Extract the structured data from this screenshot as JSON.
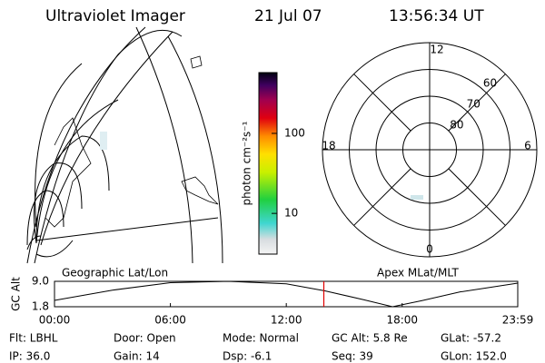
{
  "header": {
    "instrument": "Ultraviolet Imager",
    "date": "21 Jul 07",
    "time": "13:56:34 UT"
  },
  "colorbar": {
    "label": "photon cm⁻²s⁻¹",
    "scale": "log",
    "lim": [
      3.1,
      575
    ],
    "ticks": [
      10,
      100
    ]
  },
  "polar": {
    "outer_lat": 50,
    "rings": [
      60,
      70,
      80
    ],
    "mlt_labels": [
      "12",
      "18",
      "6",
      "0"
    ]
  },
  "panels": {
    "left": "Geographic Lat/Lon",
    "right": "Apex MLat/MLT"
  },
  "altitude": {
    "ylabel": "GC Alt",
    "ylim": [
      1.8,
      9.0
    ],
    "yticks": [
      {
        "value": 9.0,
        "label": "9.0"
      },
      {
        "value": 1.8,
        "label": "1.8"
      }
    ],
    "xlim": [
      0,
      23.983
    ],
    "xticks": [
      {
        "value": 0,
        "label": "00:00"
      },
      {
        "value": 6,
        "label": "06:00"
      },
      {
        "value": 12,
        "label": "12:00"
      },
      {
        "value": 18,
        "label": "18:00"
      },
      {
        "value": 23.983,
        "label": "23:59"
      }
    ],
    "x": [
      0,
      3,
      6,
      9,
      12,
      14,
      16,
      17.5,
      19,
      21,
      23.983
    ],
    "values": [
      3.6,
      6.5,
      8.6,
      9.0,
      8.3,
      6.3,
      3.8,
      1.8,
      3.5,
      6.0,
      8.5
    ],
    "marker": 13.943,
    "marker_color": "#e00000"
  },
  "info": [
    [
      "Flt: LBHL",
      "Door: Open",
      "Mode: Normal",
      "GC Alt: 5.8 Re",
      "GLat: -57.2"
    ],
    [
      "IP: 36.0",
      "Gain: 14",
      "Dsp:   -6.1",
      "Seq: 39",
      "GLon: 152.0"
    ]
  ]
}
